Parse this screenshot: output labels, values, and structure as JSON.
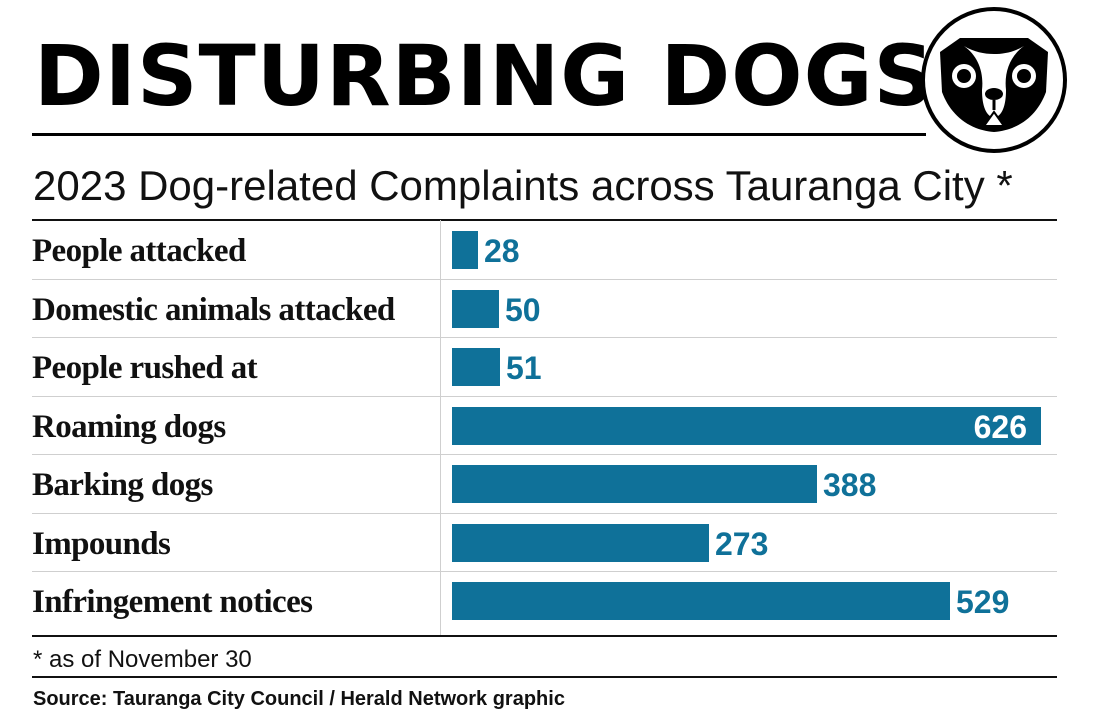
{
  "header": {
    "title": "DISTURBING DOGS",
    "subtitle": "2023 Dog-related Complaints across Tauranga City *"
  },
  "logo": {
    "icon": "dog-face-icon"
  },
  "colors": {
    "bar": "#0f7199",
    "text": "#111111"
  },
  "chart_data": {
    "type": "bar",
    "orientation": "horizontal",
    "title": "DISTURBING DOGS",
    "subtitle": "2023 Dog-related Complaints across Tauranga City *",
    "categories": [
      "People attacked",
      "Domestic animals attacked",
      "People rushed at",
      "Roaming dogs",
      "Barking dogs",
      "Impounds",
      "Infringement notices"
    ],
    "values": [
      28,
      50,
      51,
      626,
      388,
      273,
      529
    ],
    "value_labels": [
      "28",
      "50",
      "51",
      "626",
      "388",
      "273",
      "529"
    ],
    "xlim": [
      0,
      626
    ],
    "grid": false,
    "legend": "none"
  },
  "footer": {
    "footnote": "* as of November 30",
    "source": "Source: Tauranga City Council / Herald Network graphic"
  }
}
